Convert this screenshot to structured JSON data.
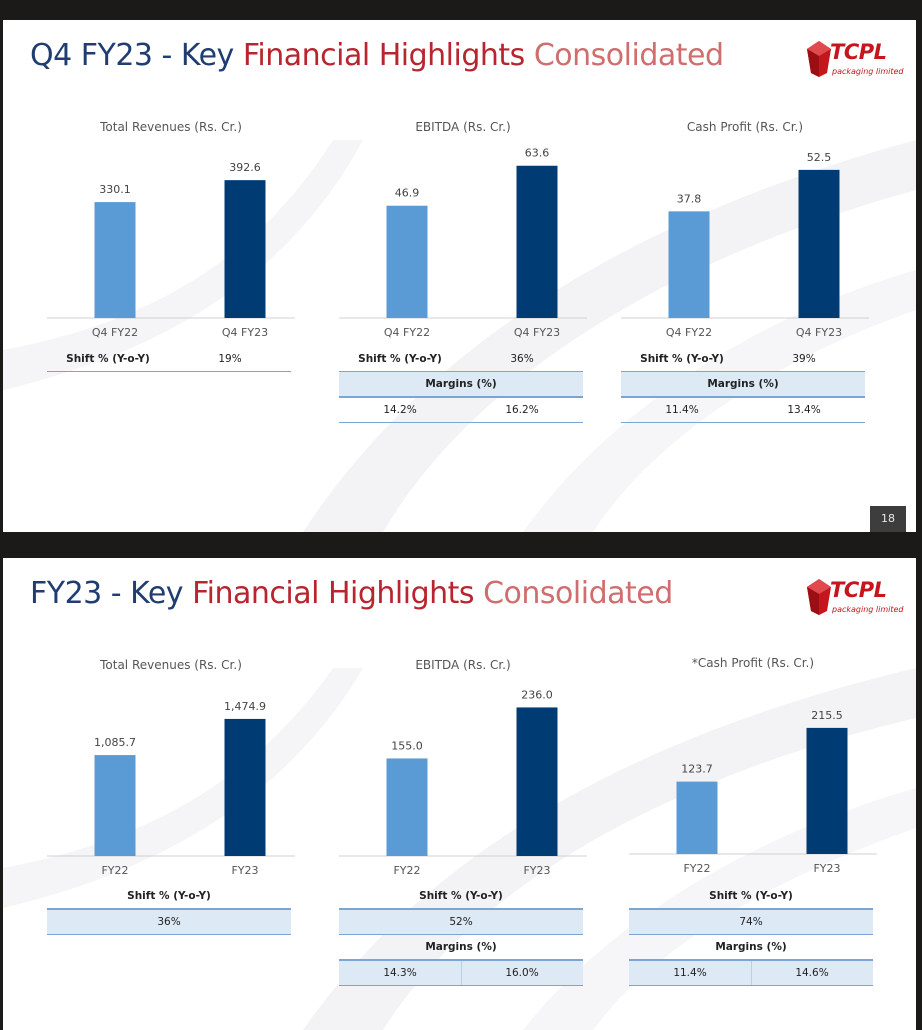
{
  "slides": [
    {
      "title": {
        "part1": "Q4 FY23 - Key ",
        "part2": "Financial Highlights",
        "part3": " Consolidated"
      },
      "logo": {
        "brand": "TCPL",
        "tagline": "packaging limited"
      },
      "page_number": "18"
    },
    {
      "title": {
        "part1": "FY23 - Key ",
        "part2": "Financial Highlights",
        "part3": " Consolidated"
      },
      "logo": {
        "brand": "TCPL",
        "tagline": "packaging limited"
      }
    }
  ],
  "colors": {
    "prior": "#5b9bd5",
    "current": "#003b73",
    "title_blue": "#1f3d70",
    "title_red": "#b8252e",
    "brand_red": "#c4161c"
  },
  "chart_data": [
    {
      "type": "bar",
      "title": "Total Revenues (Rs. Cr.)",
      "categories": [
        "Q4 FY22",
        "Q4 FY23"
      ],
      "values": [
        330.1,
        392.6
      ],
      "value_labels": [
        "330.1",
        "392.6"
      ],
      "ylim": [
        0,
        450
      ]
    },
    {
      "type": "bar",
      "title": "EBITDA (Rs. Cr.)",
      "categories": [
        "Q4 FY22",
        "Q4 FY23"
      ],
      "values": [
        46.9,
        63.6
      ],
      "value_labels": [
        "46.9",
        "63.6"
      ],
      "ylim": [
        0,
        66
      ]
    },
    {
      "type": "bar",
      "title": "Cash Profit (Rs. Cr.)",
      "categories": [
        "Q4 FY22",
        "Q4 FY23"
      ],
      "values": [
        37.8,
        52.5
      ],
      "value_labels": [
        "37.8",
        "52.5"
      ],
      "ylim": [
        0,
        56
      ]
    },
    {
      "type": "bar",
      "title": "Total Revenues (Rs. Cr.)",
      "categories": [
        "FY22",
        "FY23"
      ],
      "values": [
        1085.7,
        1474.9
      ],
      "value_labels": [
        "1,085.7",
        "1,474.9"
      ],
      "ylim": [
        0,
        1700
      ]
    },
    {
      "type": "bar",
      "title": "EBITDA (Rs. Cr.)",
      "categories": [
        "FY22",
        "FY23"
      ],
      "values": [
        155.0,
        236.0
      ],
      "value_labels": [
        "155.0",
        "236.0"
      ],
      "ylim": [
        0,
        251
      ]
    },
    {
      "type": "bar",
      "title": "*Cash Profit (Rs. Cr.)",
      "categories": [
        "FY22",
        "FY23"
      ],
      "values": [
        123.7,
        215.5
      ],
      "value_labels": [
        "123.7",
        "215.5"
      ],
      "ylim": [
        0,
        270
      ]
    }
  ],
  "tables": {
    "s1_rev": {
      "shift_label": "Shift % (Y-o-Y)",
      "shift_value": "19%"
    },
    "s1_ebitda": {
      "shift_label": "Shift % (Y-o-Y)",
      "shift_value": "36%",
      "margins_label": "Margins (%)",
      "margins": [
        "14.2%",
        "16.2%"
      ]
    },
    "s1_cash": {
      "shift_label": "Shift % (Y-o-Y)",
      "shift_value": "39%",
      "margins_label": "Margins (%)",
      "margins": [
        "11.4%",
        "13.4%"
      ]
    },
    "s2_rev": {
      "shift_label": "Shift % (Y-o-Y)",
      "shift_value": "36%"
    },
    "s2_ebitda": {
      "shift_label": "Shift % (Y-o-Y)",
      "shift_value": "52%",
      "margins_label": "Margins (%)",
      "margins": [
        "14.3%",
        "16.0%"
      ]
    },
    "s2_cash": {
      "shift_label": "Shift % (Y-o-Y)",
      "shift_value": "74%",
      "margins_label": "Margins (%)",
      "margins": [
        "11.4%",
        "14.6%"
      ]
    }
  }
}
